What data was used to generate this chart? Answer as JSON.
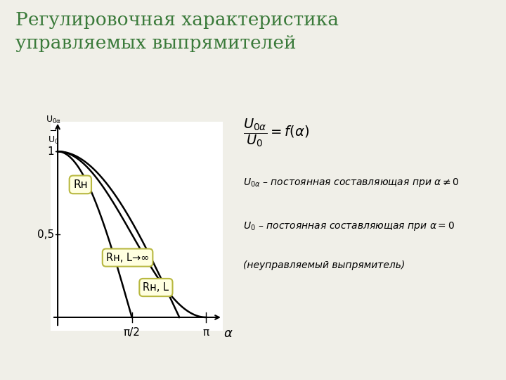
{
  "title_line1": "Регулировочная характеристика",
  "title_line2": "управляемых выпрямителей",
  "title_color": "#3a7a3a",
  "title_fontsize": 19,
  "ytick_labels": [
    "0,5",
    "1"
  ],
  "ytick_vals": [
    0.5,
    1.0
  ],
  "xtick_positions": [
    1.5707963267948966,
    3.141592653589793
  ],
  "xtick_labels": [
    "π/2",
    "π"
  ],
  "curve_color": "#000000",
  "box_facecolor": "#ffffe0",
  "box_edgecolor": "#b8b840",
  "label_Rn": "Rн",
  "label_RnL_inf": "Rн, L→∞",
  "label_RnL": "Rн, L",
  "slide_bg": "#f0efe8",
  "plot_bg": "#ffffff",
  "border_color": "#c8b84a",
  "text_color": "#000000"
}
